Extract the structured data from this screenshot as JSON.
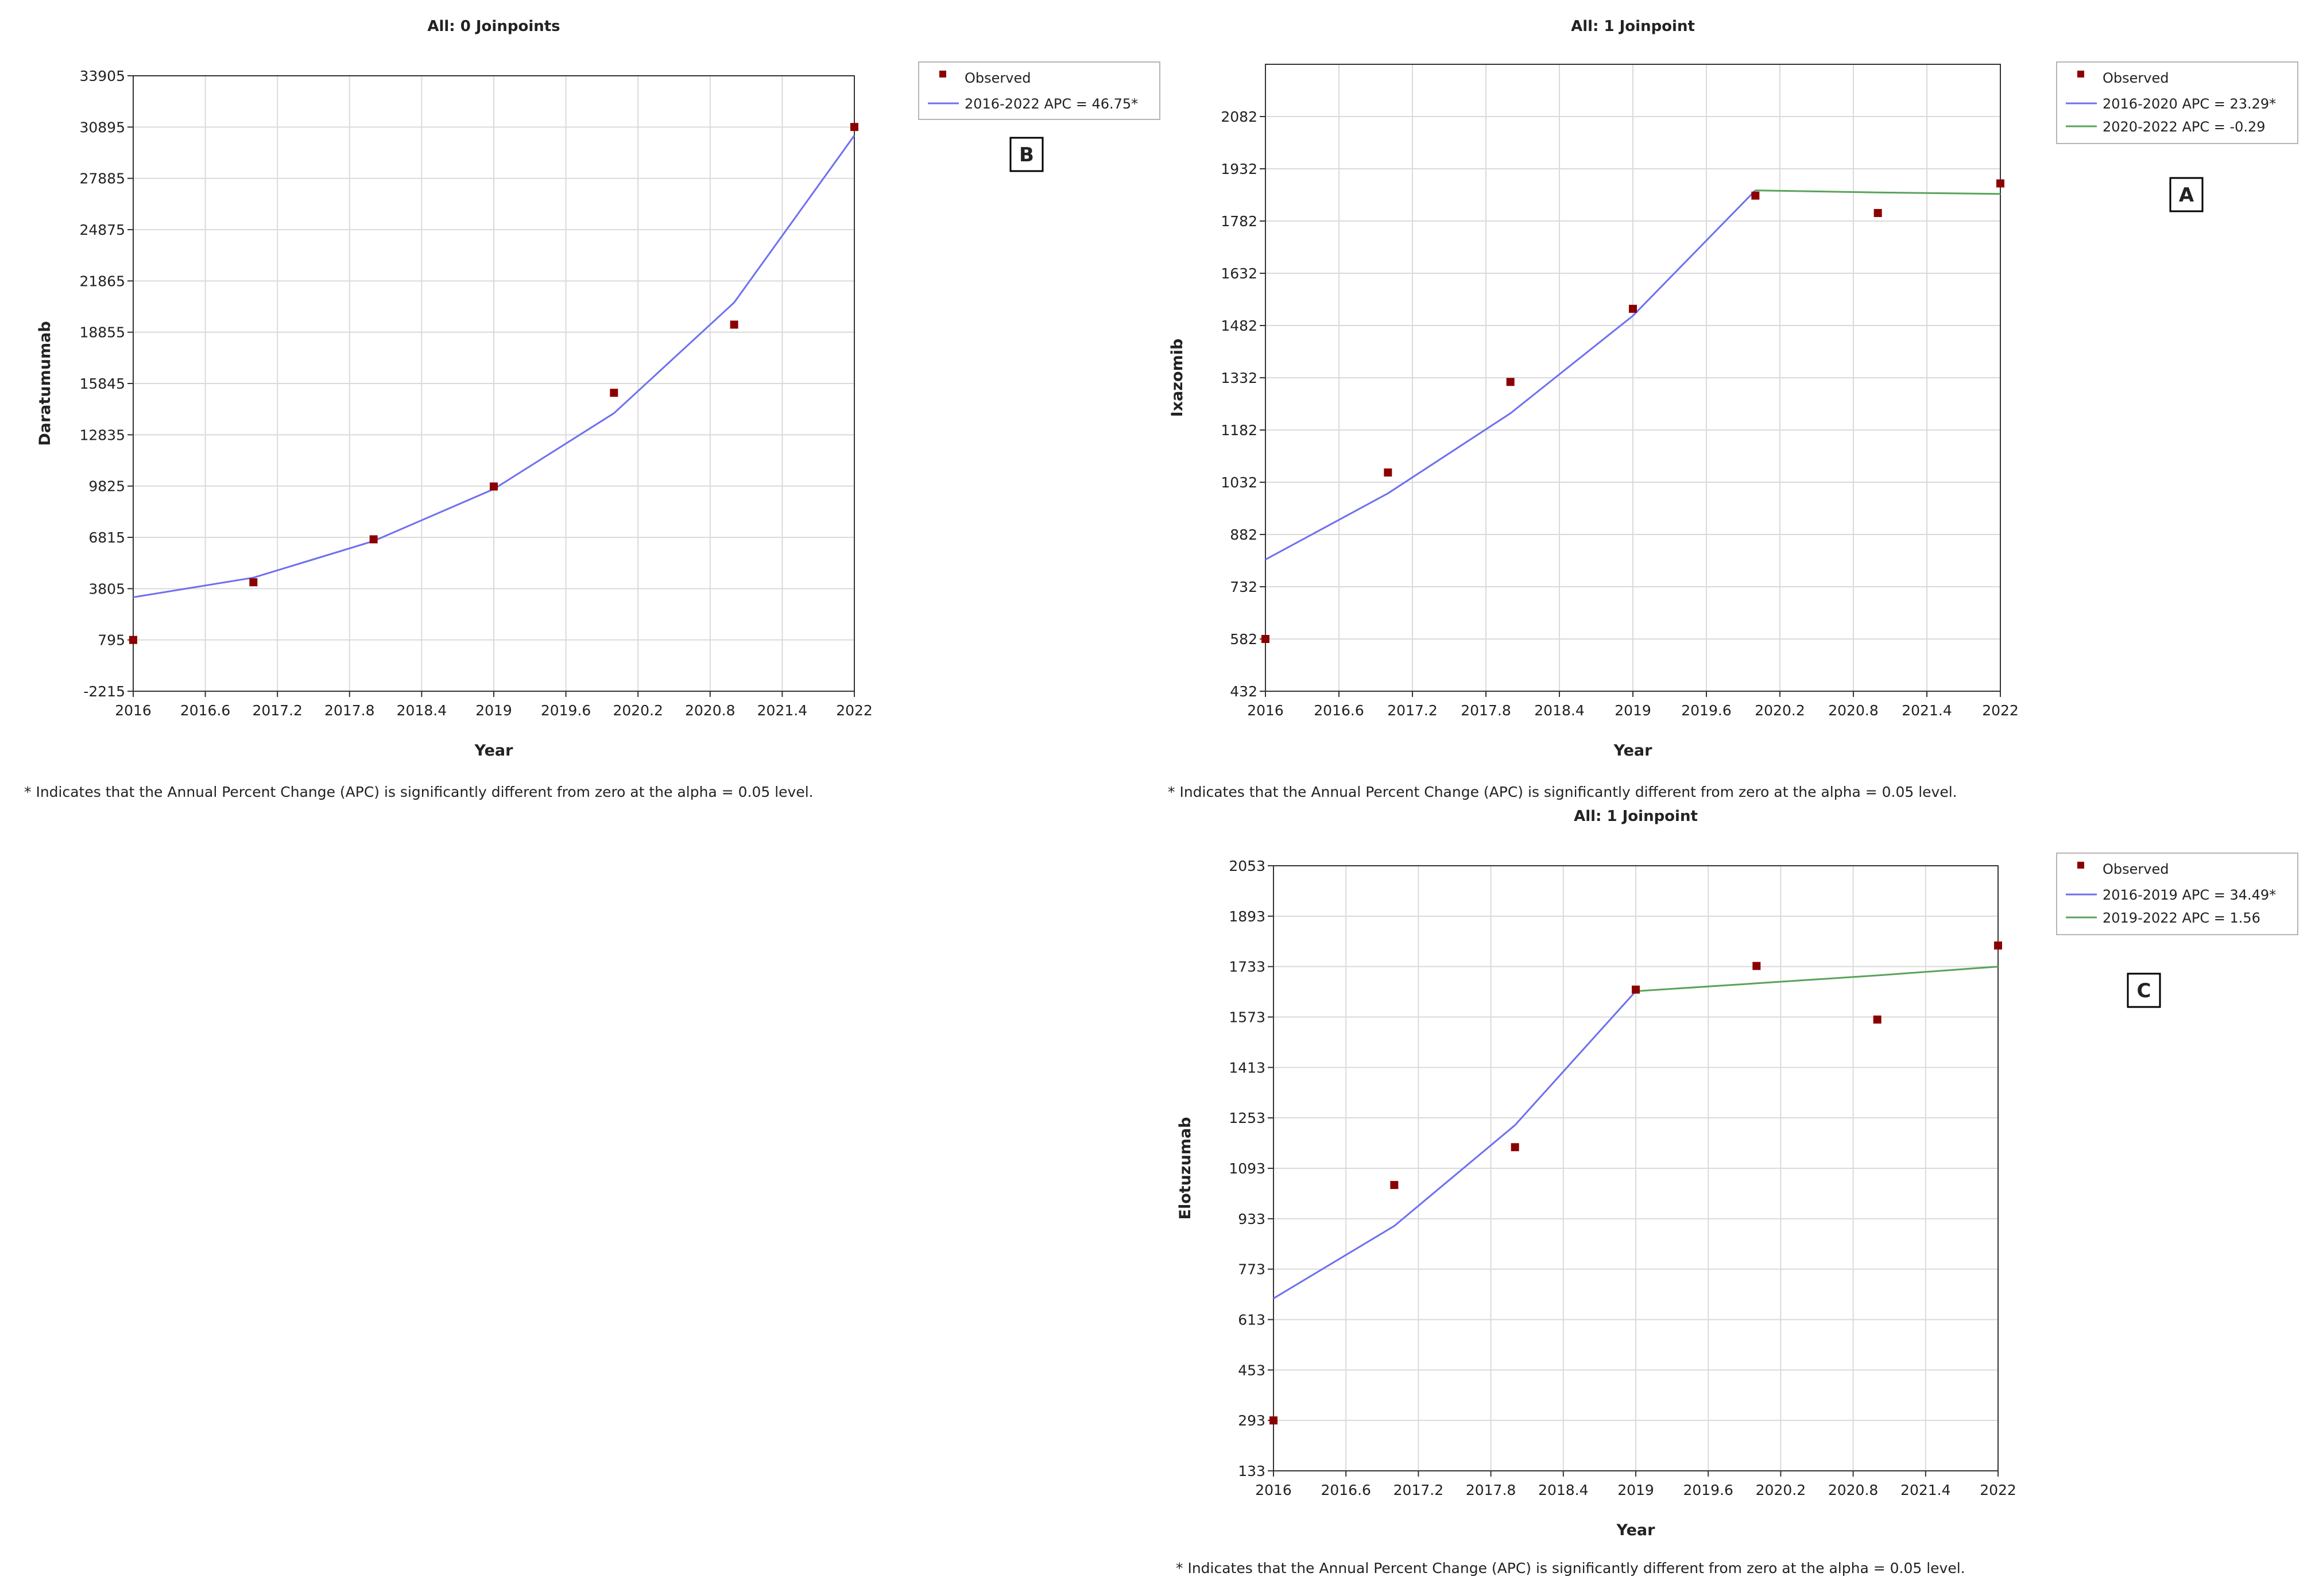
{
  "footnote": "* Indicates that the Annual Percent Change (APC) is significantly different from zero at the alpha = 0.05 level.",
  "colors": {
    "observed": "#8b0000",
    "segment1": "#6f6ff2",
    "segment2": "#5aa35a",
    "grid": "#dadada",
    "axis": "#333333"
  },
  "chart_data": [
    {
      "id": "daratumumab",
      "type": "line",
      "title": "All: 0 Joinpoints",
      "panel_label": "B",
      "xlabel": "Year",
      "ylabel": "Daratumumab",
      "xlim": [
        2016,
        2022
      ],
      "ylim": [
        -2215,
        33905
      ],
      "xticks": [
        "2016",
        "2016.6",
        "2017.2",
        "2017.8",
        "2018.4",
        "2019",
        "2019.6",
        "2020.2",
        "2020.8",
        "2021.4",
        "2022"
      ],
      "yticks": [
        "-2215",
        "795",
        "3805",
        "6815",
        "9825",
        "12835",
        "15845",
        "18855",
        "21865",
        "24875",
        "27885",
        "30895",
        "33905"
      ],
      "observed": {
        "name": "Observed",
        "x": [
          2016,
          2017,
          2018,
          2019,
          2020,
          2021,
          2022
        ],
        "y": [
          795,
          4180,
          6700,
          9800,
          15300,
          19300,
          30900
        ]
      },
      "series": [
        {
          "name": "2016-2022 APC  = 46.75*",
          "color_key": "segment1",
          "x": [
            2016,
            2017,
            2018,
            2019,
            2020,
            2021,
            2022
          ],
          "y": [
            3300,
            4450,
            6600,
            9650,
            14100,
            20600,
            30400
          ]
        }
      ],
      "legend": "top-right"
    },
    {
      "id": "ixazomib",
      "type": "line",
      "title": "All: 1 Joinpoint",
      "panel_label": "A",
      "xlabel": "Year",
      "ylabel": "Ixazomib",
      "xlim": [
        2016,
        2022
      ],
      "ylim": [
        432,
        2232
      ],
      "xticks": [
        "2016",
        "2016.6",
        "2017.2",
        "2017.8",
        "2018.4",
        "2019",
        "2019.6",
        "2020.2",
        "2020.8",
        "2021.4",
        "2022"
      ],
      "yticks": [
        "432",
        "582",
        "732",
        "882",
        "1032",
        "1182",
        "1332",
        "1482",
        "1632",
        "1782",
        "1932",
        "2082"
      ],
      "observed": {
        "name": "Observed",
        "x": [
          2016,
          2017,
          2018,
          2019,
          2020,
          2021,
          2022
        ],
        "y": [
          582,
          1060,
          1320,
          1530,
          1855,
          1805,
          1890
        ]
      },
      "series": [
        {
          "name": "2016-2020 APC  = 23.29*",
          "color_key": "segment1",
          "x": [
            2016,
            2017,
            2018,
            2019,
            2020
          ],
          "y": [
            810,
            1000,
            1230,
            1510,
            1870
          ]
        },
        {
          "name": "2020-2022 APC  = -0.29",
          "color_key": "segment2",
          "x": [
            2020,
            2021,
            2022
          ],
          "y": [
            1870,
            1864,
            1860
          ]
        }
      ],
      "legend": "top-right"
    },
    {
      "id": "elotuzumab",
      "type": "line",
      "title": "All: 1 Joinpoint",
      "panel_label": "C",
      "xlabel": "Year",
      "ylabel": "Elotuzumab",
      "xlim": [
        2016,
        2022
      ],
      "ylim": [
        133,
        2053
      ],
      "xticks": [
        "2016",
        "2016.6",
        "2017.2",
        "2017.8",
        "2018.4",
        "2019",
        "2019.6",
        "2020.2",
        "2020.8",
        "2021.4",
        "2022"
      ],
      "yticks": [
        "133",
        "293",
        "453",
        "613",
        "773",
        "933",
        "1093",
        "1253",
        "1413",
        "1573",
        "1733",
        "1893",
        "2053"
      ],
      "observed": {
        "name": "Observed",
        "x": [
          2016,
          2017,
          2018,
          2019,
          2020,
          2021,
          2022
        ],
        "y": [
          293,
          1040,
          1160,
          1660,
          1735,
          1565,
          1800
        ]
      },
      "series": [
        {
          "name": "2016-2019 APC  = 34.49*",
          "color_key": "segment1",
          "x": [
            2016,
            2017,
            2018,
            2019
          ],
          "y": [
            680,
            910,
            1230,
            1655
          ]
        },
        {
          "name": "2019-2022 APC  = 1.56",
          "color_key": "segment2",
          "x": [
            2019,
            2020,
            2021,
            2022
          ],
          "y": [
            1655,
            1680,
            1705,
            1733
          ]
        }
      ],
      "legend": "top-right"
    }
  ]
}
